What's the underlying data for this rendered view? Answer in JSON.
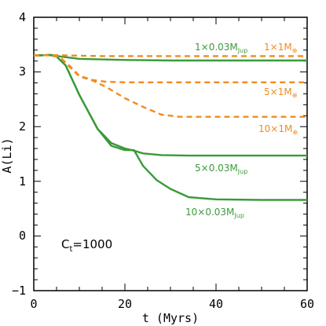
{
  "chart_data": {
    "type": "line",
    "xlabel": "t (Myrs)",
    "ylabel": "A(Li)",
    "xlim": [
      0,
      60
    ],
    "ylim": [
      -1,
      4
    ],
    "x_ticks": [
      "0",
      "20",
      "40",
      "60"
    ],
    "y_ticks": [
      "−1",
      "0",
      "1",
      "2",
      "3",
      "4"
    ],
    "grid": false,
    "colors": {
      "green": "#3a9a3a",
      "orange": "#f08c1e"
    },
    "series": [
      {
        "name": "1×0.03M_Jup",
        "style": "solid",
        "color": "#3a9a3a",
        "x": [
          0,
          4,
          6,
          10,
          20,
          30,
          40,
          50,
          60
        ],
        "y": [
          3.3,
          3.31,
          3.28,
          3.24,
          3.22,
          3.21,
          3.21,
          3.21,
          3.21
        ]
      },
      {
        "name": "5×0.03M_Jup",
        "style": "solid",
        "color": "#3a9a3a",
        "x": [
          0,
          3.5,
          5,
          7,
          10,
          14,
          17,
          20,
          22,
          24,
          28,
          34,
          40,
          50,
          60
        ],
        "y": [
          3.3,
          3.31,
          3.28,
          3.12,
          2.58,
          1.96,
          1.7,
          1.6,
          1.56,
          1.51,
          1.48,
          1.47,
          1.47,
          1.47,
          1.47
        ]
      },
      {
        "name": "10×0.03M_Jup",
        "style": "solid",
        "color": "#3a9a3a",
        "x": [
          0,
          3.5,
          5,
          7,
          10,
          14,
          17,
          20,
          22,
          24,
          27,
          30,
          34,
          40,
          50,
          60
        ],
        "y": [
          3.3,
          3.31,
          3.28,
          3.12,
          2.58,
          1.96,
          1.65,
          1.57,
          1.57,
          1.28,
          1.02,
          0.86,
          0.71,
          0.67,
          0.66,
          0.66
        ]
      },
      {
        "name": "1×1M_⊕",
        "style": "dashed",
        "color": "#f08c1e",
        "x": [
          0,
          4,
          8,
          15,
          25,
          40,
          60
        ],
        "y": [
          3.3,
          3.31,
          3.3,
          3.29,
          3.29,
          3.29,
          3.29
        ]
      },
      {
        "name": "5×1M_⊕",
        "style": "dashed",
        "color": "#f08c1e",
        "x": [
          0,
          4,
          6,
          8,
          10,
          13,
          16,
          20,
          30,
          45,
          60
        ],
        "y": [
          3.3,
          3.31,
          3.25,
          3.1,
          2.93,
          2.85,
          2.82,
          2.81,
          2.81,
          2.81,
          2.81
        ]
      },
      {
        "name": "10×1M_⊕",
        "style": "dashed",
        "color": "#f08c1e",
        "x": [
          0,
          4,
          6,
          8,
          10,
          13,
          16,
          20,
          24,
          28,
          32,
          40,
          50,
          60
        ],
        "y": [
          3.3,
          3.31,
          3.25,
          3.08,
          2.92,
          2.84,
          2.72,
          2.52,
          2.36,
          2.22,
          2.18,
          2.18,
          2.18,
          2.18
        ]
      }
    ],
    "annotations": [
      {
        "id": "g1",
        "base": "1×0.03M",
        "sub": "Jup",
        "color": "#3a9a3a"
      },
      {
        "id": "g5",
        "base": "5×0.03M",
        "sub": "Jup",
        "color": "#3a9a3a"
      },
      {
        "id": "g10",
        "base": "10×0.03M",
        "sub": "Jup",
        "color": "#3a9a3a"
      },
      {
        "id": "o1",
        "base": "1×1M",
        "sub": "⊕",
        "color": "#f08c1e"
      },
      {
        "id": "o5",
        "base": "5×1M",
        "sub": "⊕",
        "color": "#f08c1e"
      },
      {
        "id": "o10",
        "base": "10×1M",
        "sub": "⊕",
        "color": "#f08c1e"
      }
    ],
    "ct_label": {
      "base": "C",
      "sub": "t",
      "rest": "=1000"
    }
  }
}
